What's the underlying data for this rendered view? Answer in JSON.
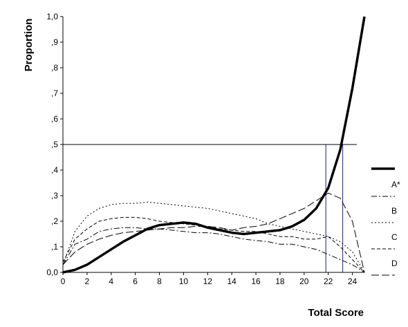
{
  "chart_data": {
    "type": "line",
    "title": "",
    "xlabel": "Total Score",
    "ylabel": "Proportion",
    "xlim": [
      0,
      25
    ],
    "ylim": [
      0,
      1
    ],
    "x_ticks": [
      "0",
      "2",
      "4",
      "6",
      "8",
      "10",
      "12",
      "14",
      "16",
      "18",
      "20",
      "22",
      "24"
    ],
    "y_ticks": [
      "0,0",
      ",1",
      ",2",
      ",3",
      ",4",
      ",5",
      ",6",
      ",7",
      ",8",
      ",9",
      "1,0"
    ],
    "reference_line_y": 0.5,
    "reference_verticals_x": [
      21.8,
      23.2
    ],
    "grid": false,
    "legend_position": "right",
    "x": [
      0,
      1,
      2,
      3,
      4,
      5,
      6,
      7,
      8,
      9,
      10,
      11,
      12,
      13,
      14,
      15,
      16,
      17,
      18,
      19,
      20,
      21,
      22,
      23,
      24,
      25
    ],
    "series": [
      {
        "legend": "",
        "style": "thick-solid",
        "values": [
          0.0,
          0.01,
          0.03,
          0.06,
          0.09,
          0.12,
          0.145,
          0.17,
          0.185,
          0.19,
          0.195,
          0.19,
          0.175,
          0.165,
          0.155,
          0.15,
          0.155,
          0.16,
          0.165,
          0.18,
          0.205,
          0.25,
          0.33,
          0.48,
          0.72,
          1.0
        ]
      },
      {
        "legend": "A*",
        "style": "dash-dot",
        "values": [
          0.03,
          0.11,
          0.13,
          0.16,
          0.17,
          0.175,
          0.175,
          0.17,
          0.17,
          0.165,
          0.16,
          0.155,
          0.155,
          0.15,
          0.14,
          0.13,
          0.125,
          0.12,
          0.11,
          0.11,
          0.1,
          0.09,
          0.07,
          0.05,
          0.03,
          0.0
        ]
      },
      {
        "legend": "B",
        "style": "dotted",
        "values": [
          0.03,
          0.16,
          0.22,
          0.25,
          0.265,
          0.27,
          0.27,
          0.275,
          0.27,
          0.265,
          0.26,
          0.255,
          0.25,
          0.24,
          0.23,
          0.22,
          0.21,
          0.19,
          0.18,
          0.17,
          0.16,
          0.15,
          0.14,
          0.12,
          0.08,
          0.0
        ]
      },
      {
        "legend": "C",
        "style": "short-dash",
        "values": [
          0.04,
          0.13,
          0.17,
          0.2,
          0.21,
          0.215,
          0.215,
          0.21,
          0.2,
          0.195,
          0.19,
          0.185,
          0.18,
          0.17,
          0.165,
          0.16,
          0.16,
          0.15,
          0.14,
          0.14,
          0.13,
          0.13,
          0.14,
          0.1,
          0.05,
          0.0
        ]
      },
      {
        "legend": "D",
        "style": "long-dash",
        "values": [
          0.03,
          0.08,
          0.11,
          0.13,
          0.145,
          0.155,
          0.16,
          0.165,
          0.17,
          0.175,
          0.175,
          0.18,
          0.18,
          0.175,
          0.165,
          0.175,
          0.18,
          0.19,
          0.21,
          0.23,
          0.25,
          0.28,
          0.31,
          0.29,
          0.2,
          0.0
        ]
      }
    ]
  }
}
